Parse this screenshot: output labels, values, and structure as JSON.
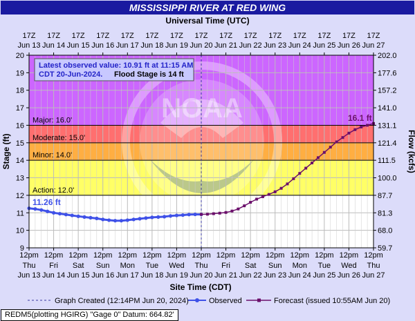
{
  "chart_data": {
    "type": "line",
    "title": "MISSISSIPPI RIVER AT RED WING",
    "top_axis_title": "Universal Time (UTC)",
    "bottom_axis_title": "Site Time (CDT)",
    "ylabel": "Stage (ft)",
    "ylabel_right": "Flow (kcfs)",
    "ylim": [
      9,
      20
    ],
    "y_ticks": [
      9,
      10,
      11,
      12,
      13,
      14,
      15,
      16,
      17,
      18,
      19,
      20
    ],
    "right_ticks": [
      {
        "stage": 9,
        "label": "59.7"
      },
      {
        "stage": 10,
        "label": "68.0"
      },
      {
        "stage": 11,
        "label": "81.3"
      },
      {
        "stage": 12,
        "label": "87.7"
      },
      {
        "stage": 13,
        "label": "100.0"
      },
      {
        "stage": 14,
        "label": "111.5"
      },
      {
        "stage": 15,
        "label": "121.4"
      },
      {
        "stage": 16,
        "label": "131.1"
      },
      {
        "stage": 17,
        "label": "141.0"
      },
      {
        "stage": 18,
        "label": "157.2"
      },
      {
        "stage": 19,
        "label": "177.6"
      },
      {
        "stage": 20,
        "label": "202.0"
      }
    ],
    "x_range_days": [
      0,
      14
    ],
    "top_ticks": [
      {
        "l1": "17Z",
        "l2": "Jun 13"
      },
      {
        "l1": "17Z",
        "l2": "Jun 14"
      },
      {
        "l1": "17Z",
        "l2": "Jun 15"
      },
      {
        "l1": "17Z",
        "l2": "Jun 16"
      },
      {
        "l1": "17Z",
        "l2": "Jun 17"
      },
      {
        "l1": "17Z",
        "l2": "Jun 18"
      },
      {
        "l1": "17Z",
        "l2": "Jun 19"
      },
      {
        "l1": "17Z",
        "l2": "Jun 20"
      },
      {
        "l1": "17Z",
        "l2": "Jun 21"
      },
      {
        "l1": "17Z",
        "l2": "Jun 22"
      },
      {
        "l1": "17Z",
        "l2": "Jun 23"
      },
      {
        "l1": "17Z",
        "l2": "Jun 24"
      },
      {
        "l1": "17Z",
        "l2": "Jun 25"
      },
      {
        "l1": "17Z",
        "l2": "Jun 26"
      },
      {
        "l1": "17Z",
        "l2": "Jun 27"
      }
    ],
    "bottom_ticks": [
      {
        "l1": "12pm",
        "l2": "Thu",
        "l3": "Jun 13"
      },
      {
        "l1": "12pm",
        "l2": "Fri",
        "l3": "Jun 14"
      },
      {
        "l1": "12pm",
        "l2": "Sat",
        "l3": "Jun 15"
      },
      {
        "l1": "12pm",
        "l2": "Sun",
        "l3": "Jun 16"
      },
      {
        "l1": "12pm",
        "l2": "Mon",
        "l3": "Jun 17"
      },
      {
        "l1": "12pm",
        "l2": "Tue",
        "l3": "Jun 18"
      },
      {
        "l1": "12pm",
        "l2": "Wed",
        "l3": "Jun 19"
      },
      {
        "l1": "12pm",
        "l2": "Thu",
        "l3": "Jun 20"
      },
      {
        "l1": "12pm",
        "l2": "Fri",
        "l3": "Jun 21"
      },
      {
        "l1": "12pm",
        "l2": "Sat",
        "l3": "Jun 22"
      },
      {
        "l1": "12pm",
        "l2": "Sun",
        "l3": "Jun 23"
      },
      {
        "l1": "12pm",
        "l2": "Mon",
        "l3": "Jun 24"
      },
      {
        "l1": "12pm",
        "l2": "Tue",
        "l3": "Jun 25"
      },
      {
        "l1": "12pm",
        "l2": "Wed",
        "l3": "Jun 26"
      },
      {
        "l1": "12pm",
        "l2": "Thu",
        "l3": "Jun 27"
      }
    ],
    "flood_categories": [
      {
        "label": "Major: 16.0'",
        "stage": 16.0,
        "color": "#cc66ff",
        "top": 20
      },
      {
        "label": "Moderate: 15.0'",
        "stage": 15.0,
        "color": "#ff6f6f",
        "top": 16
      },
      {
        "label": "Minor: 14.0'",
        "stage": 14.0,
        "color": "#ffae42",
        "top": 15
      },
      {
        "label": "Action: 12.0'",
        "stage": 12.0,
        "color": "#ffff66",
        "top": 14
      }
    ],
    "graph_created_day": 7.0,
    "series": [
      {
        "name": "Observed",
        "color": "#3f51e8",
        "x": [
          0,
          0.25,
          0.5,
          0.75,
          1.0,
          1.25,
          1.5,
          1.75,
          2.0,
          2.25,
          2.5,
          2.75,
          3.0,
          3.25,
          3.5,
          3.75,
          4.0,
          4.25,
          4.5,
          4.75,
          5.0,
          5.25,
          5.5,
          5.75,
          6.0,
          6.25,
          6.5,
          6.75,
          7.0
        ],
        "y": [
          11.26,
          11.22,
          11.16,
          11.08,
          11.0,
          10.95,
          10.9,
          10.85,
          10.8,
          10.76,
          10.72,
          10.68,
          10.62,
          10.58,
          10.55,
          10.55,
          10.58,
          10.62,
          10.66,
          10.7,
          10.74,
          10.76,
          10.78,
          10.82,
          10.85,
          10.87,
          10.9,
          10.91,
          10.91
        ]
      },
      {
        "name": "Forecast (issued 10:55AM Jun 20)",
        "color": "#6b0f6b",
        "x": [
          7.0,
          7.25,
          7.5,
          7.75,
          8.0,
          8.25,
          8.5,
          8.75,
          9.0,
          9.25,
          9.5,
          9.75,
          10.0,
          10.25,
          10.5,
          10.75,
          11.0,
          11.25,
          11.5,
          11.75,
          12.0,
          12.25,
          12.5,
          12.75,
          13.0,
          13.25,
          13.5,
          13.75,
          14.0
        ],
        "y": [
          10.91,
          10.92,
          10.95,
          10.98,
          11.02,
          11.1,
          11.22,
          11.4,
          11.6,
          11.78,
          11.92,
          12.05,
          12.2,
          12.4,
          12.65,
          12.95,
          13.25,
          13.55,
          13.85,
          14.15,
          14.45,
          14.75,
          15.05,
          15.3,
          15.55,
          15.75,
          15.9,
          16.0,
          16.1
        ]
      }
    ],
    "annotations": {
      "latest_line1": "Latest observed value: 10.91 ft at 11:15 AM",
      "latest_line2": "CDT 20-Jun-2024.",
      "latest_flood": "Flood Stage is 14 ft",
      "start_label": "11.26 ft",
      "end_label": "16.1 ft"
    },
    "legend": {
      "created": "Graph Created (12:14PM Jun 20, 2024)",
      "observed": "Observed",
      "forecast": "Forecast (issued 10:55AM Jun 20)"
    },
    "footer": "REDM5(plotting HGIRG) \"Gage 0\" Datum: 664.82'",
    "watermark_text": "NOAA",
    "grid": true
  }
}
